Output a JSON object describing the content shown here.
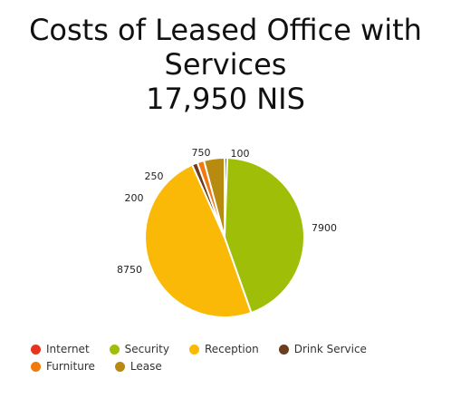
{
  "chart_data": {
    "type": "pie",
    "title": [
      "Costs of Leased Office with",
      "Services",
      "17,950 NIS"
    ],
    "slices": [
      {
        "label": "Internet",
        "value": 100,
        "color": "#e8341c"
      },
      {
        "label": "Security",
        "value": 7900,
        "color": "#9fbe08"
      },
      {
        "label": "Reception",
        "value": 8750,
        "color": "#fbb907"
      },
      {
        "label": "Drink Service",
        "value": 200,
        "color": "#6a3d1e"
      },
      {
        "label": "Furniture",
        "value": 250,
        "color": "#f07a10"
      },
      {
        "label": "Lease",
        "value": 750,
        "color": "#b78a10"
      }
    ],
    "legend_position": "bottom"
  }
}
